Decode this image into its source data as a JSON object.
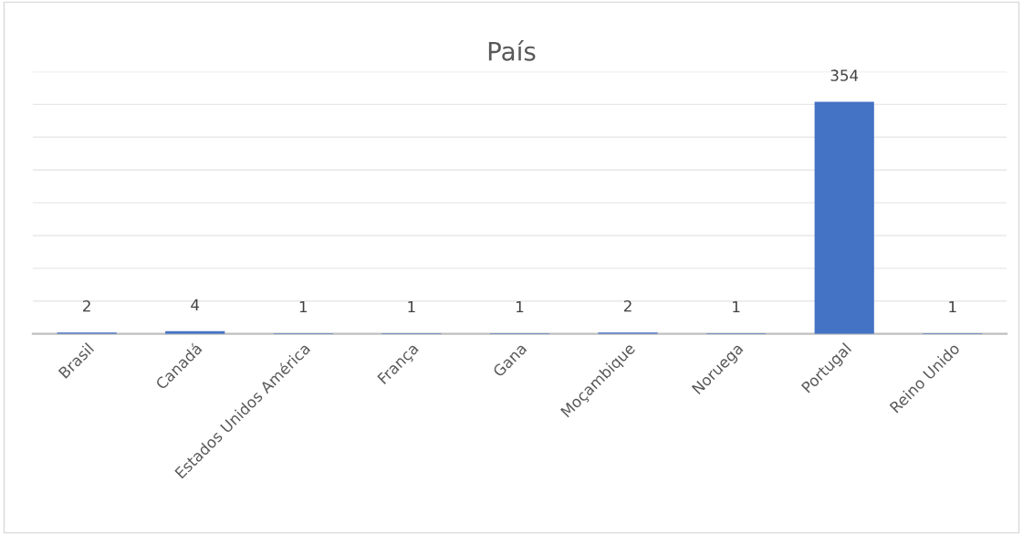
{
  "chart_data": {
    "type": "bar",
    "title": "País",
    "categories": [
      "Brasil",
      "Canadá",
      "Estados Unidos América",
      "França",
      "Gana",
      "Moçambique",
      "Noruega",
      "Portugal",
      "Reino Unido"
    ],
    "values": [
      2,
      4,
      1,
      1,
      1,
      2,
      1,
      354,
      1
    ],
    "color": "#4472c4",
    "ylim": [
      0,
      400
    ],
    "yticks": [
      {
        "value": 0,
        "label": null
      },
      {
        "value": 50,
        "label": null
      },
      {
        "value": 100,
        "label": null
      },
      {
        "value": 150,
        "label": null
      },
      {
        "value": 200,
        "label": null
      },
      {
        "value": 250,
        "label": null
      },
      {
        "value": 300,
        "label": null
      },
      {
        "value": 350,
        "label": null
      },
      {
        "value": 400,
        "label": null
      }
    ],
    "tick_labels": "x",
    "grid": "y",
    "data_labels": true
  }
}
